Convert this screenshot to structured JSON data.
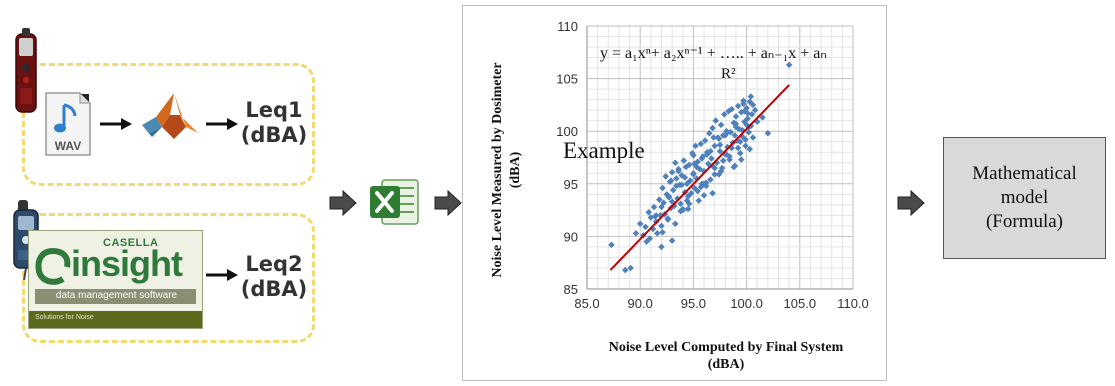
{
  "workflow": {
    "row1": {
      "wav_label": "WAV",
      "output_line1": "Leq1",
      "output_line2": "(dBA)"
    },
    "row2": {
      "brand_casella": "CASELLA",
      "brand_insight": "insight",
      "brand_tagline": "data management software",
      "brand_footer": "Solutions for Noise",
      "output_line1": "Leq2",
      "output_line2": "(dBA)"
    },
    "model_box": {
      "line1": "Mathematical",
      "line2": "model",
      "line3": "(Formula)"
    }
  },
  "chart_data": {
    "type": "scatter",
    "title": "",
    "formula": "y = a₁xⁿ+ a₂xⁿ⁻¹ + ….. + aₙ₋₁x + aₙ",
    "r_squared_label": "R²",
    "example_label": "Example",
    "xlabel_line1": "Noise  Level Computed by Final System",
    "xlabel_line2": "(dBA)",
    "ylabel_line1": "Noise Level Measured by Dosimeter",
    "ylabel_line2": "(dBA)",
    "xlim": [
      85.0,
      110.0
    ],
    "ylim": [
      85,
      110
    ],
    "x_ticks": [
      "85.0",
      "90.0",
      "95.0",
      "100.0",
      "105.0",
      "110.0"
    ],
    "y_ticks": [
      "85",
      "90",
      "95",
      "100",
      "105",
      "110"
    ],
    "grid": true,
    "marker_color": "#4f81bd",
    "trend_color": "#c00000",
    "trendline": {
      "x": [
        87.2,
        104.0
      ],
      "y": [
        86.8,
        104.4
      ]
    },
    "series": [
      {
        "x": [
          87.3,
          88.6,
          89.1,
          89.6,
          90.0,
          90.3,
          90.6,
          90.8,
          91.0,
          91.2,
          91.3,
          91.5,
          91.6,
          91.8,
          91.9,
          92.0,
          92.1,
          92.2,
          92.3,
          92.4,
          92.5,
          92.6,
          92.7,
          92.8,
          92.9,
          93.0,
          93.1,
          93.2,
          93.3,
          93.4,
          93.5,
          93.6,
          93.7,
          93.8,
          93.9,
          94.0,
          94.1,
          94.2,
          94.3,
          94.4,
          94.5,
          94.6,
          94.7,
          94.8,
          94.9,
          95.0,
          95.1,
          95.2,
          95.3,
          95.4,
          95.5,
          95.6,
          95.7,
          95.8,
          95.9,
          96.0,
          96.1,
          96.2,
          96.3,
          96.4,
          96.5,
          96.6,
          96.7,
          96.8,
          96.9,
          97.0,
          97.1,
          97.2,
          97.3,
          97.4,
          97.5,
          97.6,
          97.7,
          97.8,
          97.9,
          98.0,
          98.1,
          98.2,
          98.3,
          98.4,
          98.5,
          98.6,
          98.7,
          98.8,
          98.9,
          99.0,
          99.1,
          99.2,
          99.3,
          99.4,
          99.5,
          99.6,
          99.7,
          99.8,
          99.9,
          100.0,
          100.1,
          100.2,
          100.3,
          100.4,
          100.5,
          100.6,
          101.0,
          101.5,
          102.0,
          104.0,
          90.5,
          91.4,
          92.0,
          92.6,
          93.0,
          93.4,
          93.8,
          94.2,
          94.6,
          95.0,
          95.4,
          95.8,
          96.2,
          96.6,
          97.0,
          97.4,
          97.8,
          98.2,
          98.6,
          99.0,
          99.4,
          99.8,
          100.2,
          100.6,
          99.6,
          99.9,
          100.1,
          100.3,
          99.7,
          100.0,
          98.9,
          99.2,
          98.4,
          97.6,
          96.9,
          96.3,
          95.7,
          95.1,
          94.5,
          93.9,
          93.3,
          92.7,
          92.1,
          91.5,
          90.9,
          92.9,
          93.6,
          94.4,
          95.3,
          96.0,
          96.8,
          97.5,
          98.1,
          98.8,
          99.5,
          100.4,
          100.8,
          99.0,
          98.0,
          97.0,
          96.0,
          95.0,
          94.0,
          93.0,
          92.0
        ],
        "y": [
          89.2,
          86.8,
          87.0,
          90.3,
          91.2,
          90.1,
          89.5,
          92.3,
          91.8,
          90.7,
          92.8,
          91.4,
          90.3,
          93.5,
          92.0,
          91.0,
          94.6,
          93.2,
          92.1,
          95.7,
          94.0,
          91.6,
          93.8,
          95.2,
          92.7,
          96.1,
          94.4,
          92.9,
          97.0,
          95.5,
          93.6,
          96.4,
          94.9,
          93.1,
          95.8,
          92.6,
          97.2,
          94.2,
          96.6,
          95.0,
          93.8,
          96.8,
          95.3,
          94.1,
          97.9,
          96.0,
          94.6,
          98.6,
          95.5,
          97.1,
          93.4,
          96.4,
          98.8,
          95.0,
          97.6,
          96.2,
          99.1,
          94.8,
          98.0,
          96.9,
          99.8,
          95.4,
          97.4,
          100.3,
          96.6,
          98.6,
          101.0,
          97.0,
          99.4,
          95.9,
          98.1,
          100.6,
          96.5,
          99.6,
          101.6,
          97.8,
          100.0,
          98.5,
          101.9,
          97.3,
          99.9,
          102.1,
          98.9,
          100.8,
          96.7,
          101.4,
          99.1,
          102.4,
          100.2,
          97.9,
          101.8,
          99.5,
          102.6,
          100.9,
          98.6,
          102.2,
          101.2,
          99.9,
          102.8,
          100.5,
          101.6,
          99.4,
          100.9,
          101.3,
          99.8,
          106.3,
          90.9,
          91.9,
          92.8,
          91.7,
          93.3,
          94.8,
          92.4,
          95.6,
          93.1,
          95.9,
          94.3,
          97.4,
          95.1,
          98.1,
          96.5,
          99.3,
          97.2,
          99.9,
          98.4,
          100.7,
          99.0,
          101.9,
          100.4,
          102.5,
          100.1,
          99.2,
          101.7,
          98.3,
          102.9,
          100.6,
          99.6,
          98.4,
          97.6,
          96.2,
          99.4,
          97.8,
          94.7,
          96.9,
          92.6,
          94.9,
          91.2,
          93.7,
          90.4,
          92.0,
          89.8,
          95.3,
          96.2,
          93.4,
          96.6,
          95.0,
          94.1,
          98.7,
          97.8,
          96.6,
          97.3,
          103.3,
          102.0,
          100.4,
          99.6,
          95.9,
          93.9,
          97.7,
          92.5,
          89.6,
          89.0
        ]
      }
    ]
  }
}
